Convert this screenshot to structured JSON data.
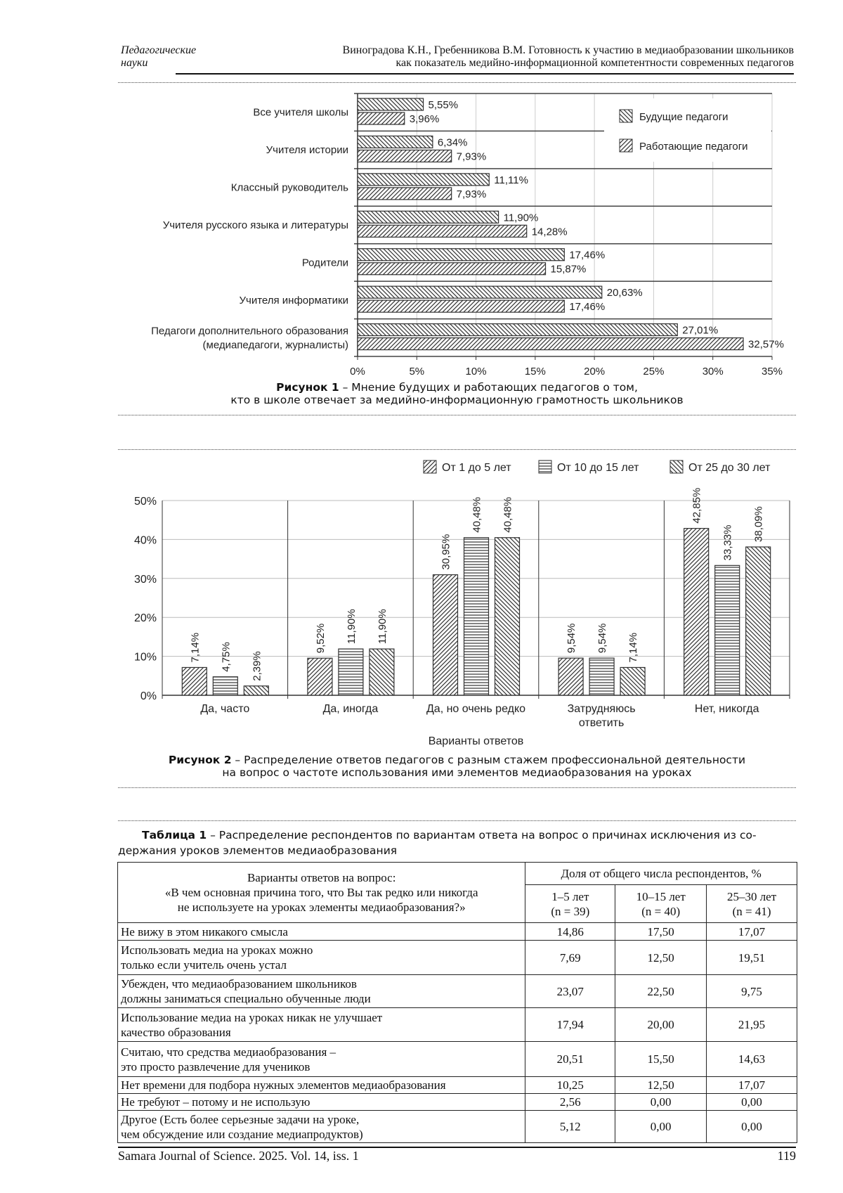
{
  "header": {
    "section_line1": "Педагогические",
    "section_line2": "науки",
    "title_line1": "Виноградова К.Н., Гребенникова В.М. Готовность к участию в медиаобразовании школьников",
    "title_line2": "как показатель медийно-информационной компетентности современных педагогов"
  },
  "figure1": {
    "caption_bold": "Рисунок 1",
    "caption_line1": " – Мнение будущих и работающих педагогов о том,",
    "caption_line2": "кто в школе отвечает за медийно-информационную грамотность школьников"
  },
  "figure2": {
    "caption_bold": "Рисунок 2",
    "caption_line1": " – Распределение ответов педагогов с разным стажем профессиональной деятельности",
    "caption_line2": "на вопрос о частоте использования ими элементов медиаобразования на уроках"
  },
  "chart_data": [
    {
      "type": "bar",
      "orientation": "horizontal",
      "categories": [
        "Все учителя школы",
        "Учителя истории",
        "Классный руководитель",
        "Учителя русского языка и литературы",
        "Родители",
        "Учителя информатики",
        "Педагоги дополнительного образования\n(медиапедагоги, журналисты)"
      ],
      "series": [
        {
          "name": "Будущие педагоги",
          "values": [
            5.55,
            6.34,
            11.11,
            11.9,
            17.46,
            20.63,
            27.01
          ],
          "labels": [
            "5,55%",
            "6,34%",
            "11,11%",
            "11,90%",
            "17,46%",
            "20,63%",
            "27,01%"
          ],
          "hatch": "backslash"
        },
        {
          "name": "Работающие педагоги",
          "values": [
            3.96,
            7.93,
            7.93,
            14.28,
            15.87,
            17.46,
            32.57
          ],
          "labels": [
            "3,96%",
            "7,93%",
            "7,93%",
            "14,28%",
            "15,87%",
            "17,46%",
            "32,57%"
          ],
          "hatch": "slash"
        }
      ],
      "xlim": [
        0,
        35
      ],
      "xticks": [
        "0%",
        "5%",
        "10%",
        "15%",
        "20%",
        "25%",
        "30%",
        "35%"
      ],
      "grid": true,
      "legend": "top-right"
    },
    {
      "type": "bar",
      "categories": [
        "Да, часто",
        "Да, иногда",
        "Да, но очень редко",
        "Затрудняюсь\nответить",
        "Нет, никогда"
      ],
      "series": [
        {
          "name": "От 1 до 5 лет",
          "values": [
            7.14,
            9.52,
            30.95,
            9.54,
            42.85
          ],
          "labels": [
            "7,14%",
            "9,52%",
            "30,95%",
            "9,54%",
            "42,85%"
          ],
          "hatch": "slash"
        },
        {
          "name": "От 10 до 15 лет",
          "values": [
            4.75,
            11.9,
            40.48,
            9.54,
            33.33
          ],
          "labels": [
            "4,75%",
            "11,90%",
            "40,48%",
            "9,54%",
            "33,33%"
          ],
          "hatch": "horizontal"
        },
        {
          "name": "От 25 до 30 лет",
          "values": [
            2.39,
            11.9,
            40.48,
            7.14,
            38.09
          ],
          "labels": [
            "2,39%",
            "11,90%",
            "40,48%",
            "7,14%",
            "38,09%"
          ],
          "hatch": "backslash"
        }
      ],
      "xlabel": "Варианты ответов",
      "ylim": [
        0,
        50
      ],
      "yticks": [
        "0%",
        "10%",
        "20%",
        "30%",
        "40%",
        "50%"
      ],
      "grid": true,
      "legend": "top"
    }
  ],
  "table1": {
    "caption_bold": "Таблица 1",
    "caption_line1": " – Распределение респондентов по вариантам ответа на вопрос о причинах исключения из со-",
    "caption_line2": "держания уроков элементов медиаобразования",
    "header_question_line1": "Варианты ответов на вопрос:",
    "header_question_line2": "«В чем основная причина того, что Вы так редко или никогда",
    "header_question_line3": "не используете на уроках элементы медиаобразования?»",
    "header_share": "Доля от общего числа респондентов, %",
    "columns": [
      {
        "label": "1–5 лет",
        "n": "(n = 39)"
      },
      {
        "label": "10–15 лет",
        "n": "(n = 40)"
      },
      {
        "label": "25–30 лет",
        "n": "(n = 41)"
      }
    ],
    "rows": [
      {
        "answer": [
          "Не вижу в этом никакого смысла"
        ],
        "values": [
          "14,86",
          "17,50",
          "17,07"
        ]
      },
      {
        "answer": [
          "Использовать медиа на уроках можно",
          "только если учитель очень устал"
        ],
        "values": [
          "7,69",
          "12,50",
          "19,51"
        ]
      },
      {
        "answer": [
          "Убежден, что медиаобразованием школьников",
          "должны заниматься специально обученные люди"
        ],
        "values": [
          "23,07",
          "22,50",
          "9,75"
        ]
      },
      {
        "answer": [
          "Использование медиа на уроках никак не улучшает",
          "качество образования"
        ],
        "values": [
          "17,94",
          "20,00",
          "21,95"
        ]
      },
      {
        "answer": [
          "Считаю, что средства медиаобразования –",
          "это просто развлечение для учеников"
        ],
        "values": [
          "20,51",
          "15,50",
          "14,63"
        ]
      },
      {
        "answer": [
          "Нет времени для подбора нужных элементов медиаобразования"
        ],
        "values": [
          "10,25",
          "12,50",
          "17,07"
        ]
      },
      {
        "answer": [
          "Не требуют – потому и не использую"
        ],
        "values": [
          "2,56",
          "0,00",
          "0,00"
        ]
      },
      {
        "answer": [
          "Другое (Есть более серьезные задачи на уроке,",
          "чем обсуждение или создание медиапродуктов)"
        ],
        "values": [
          "5,12",
          "0,00",
          "0,00"
        ]
      }
    ]
  },
  "footer": {
    "journal": "Samara Journal of Science. 2025. Vol. 14, iss. 1",
    "page": "119"
  }
}
